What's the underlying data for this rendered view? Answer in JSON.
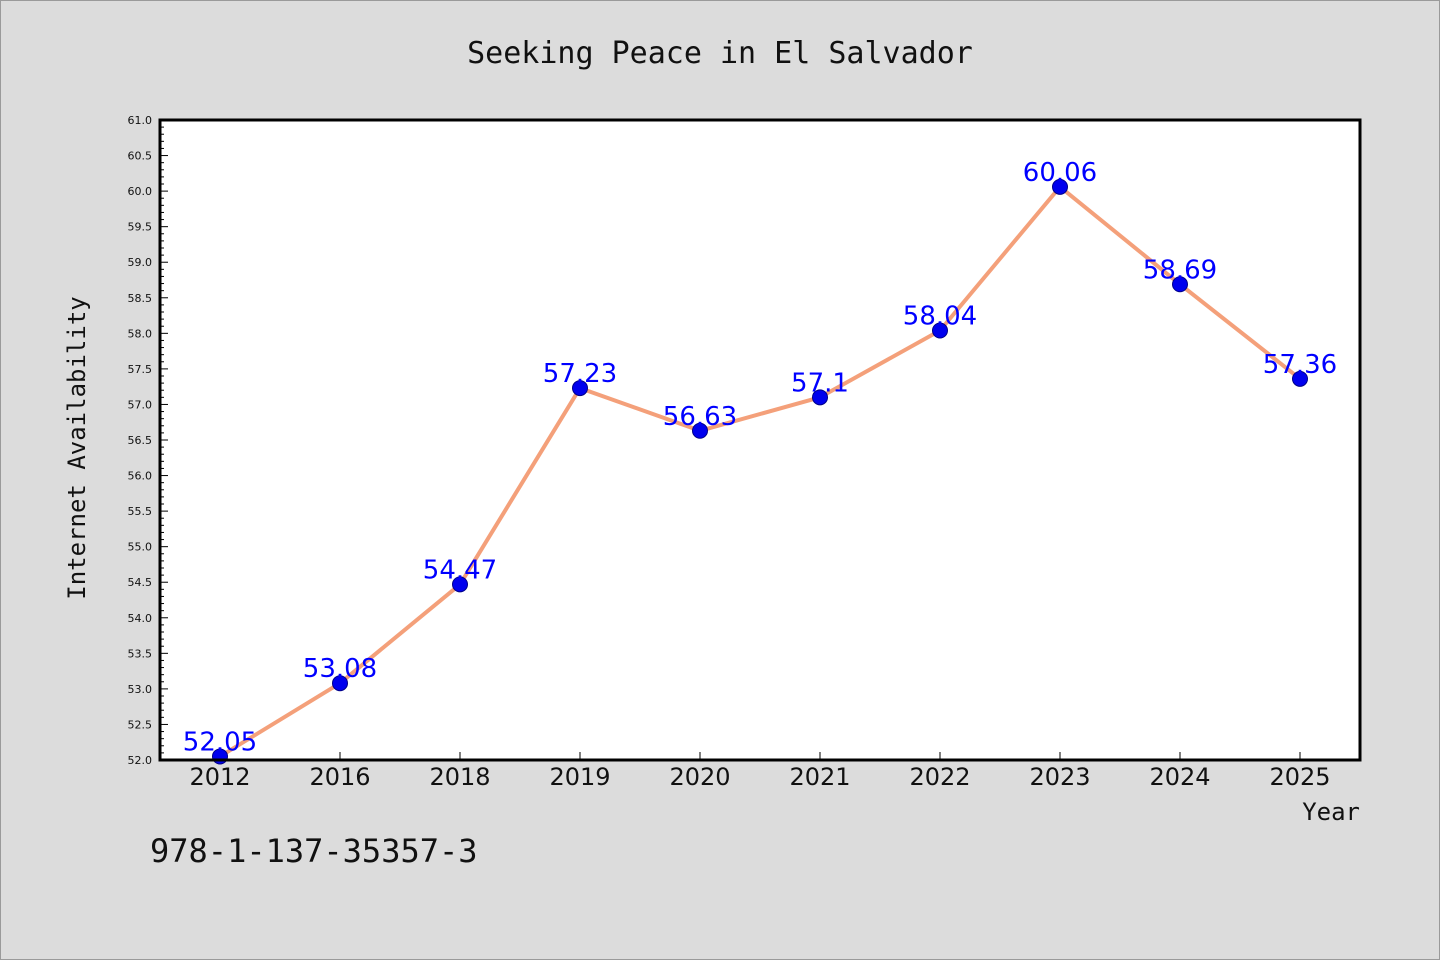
{
  "chart_data": {
    "type": "line",
    "title": "Seeking Peace in El Salvador",
    "xlabel": "Year",
    "ylabel": "Internet Availability",
    "categories": [
      "2012",
      "2016",
      "2018",
      "2019",
      "2020",
      "2021",
      "2022",
      "2023",
      "2024",
      "2025"
    ],
    "values": [
      52.05,
      53.08,
      54.47,
      57.23,
      56.63,
      57.1,
      58.04,
      60.06,
      58.69,
      57.36
    ],
    "data_labels": [
      "52.05",
      "53.08",
      "54.47",
      "57.23",
      "56.63",
      "57.1",
      "58.04",
      "60.06",
      "58.69",
      "57.36"
    ],
    "ylim": [
      52.0,
      61.0
    ],
    "y_ticks": [
      "52.0",
      "52.5",
      "53.0",
      "53.5",
      "54.0",
      "54.5",
      "55.0",
      "55.5",
      "56.0",
      "56.5",
      "57.0",
      "57.5",
      "58.0",
      "58.5",
      "59.0",
      "59.5",
      "60.0",
      "60.5",
      "61.0"
    ],
    "grid": false,
    "colors": {
      "line": "#f4a07a",
      "marker": "#0000ee",
      "label": "#0000ff"
    }
  },
  "footer": {
    "code": "978-1-137-35357-3"
  }
}
